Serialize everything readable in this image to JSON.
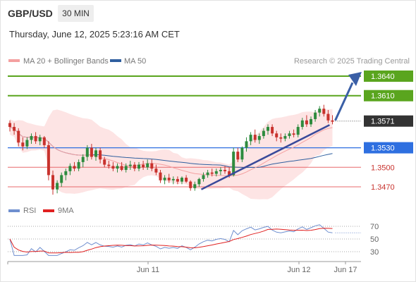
{
  "header": {
    "pair": "GBP/USD",
    "timeframe": "30 MIN",
    "datetime": "Thursday, June 12, 2025 5:23:16 AM CET"
  },
  "legend": {
    "ma20": {
      "label": "MA 20 + Bollinger Bands",
      "color": "#f4a0a0"
    },
    "ma50": {
      "label": "MA 50",
      "color": "#2f5f9f"
    },
    "credit": "Research © 2025 Trading Central"
  },
  "indicator_legend": {
    "rsi": {
      "label": "RSI",
      "color": "#6f8fcf"
    },
    "ma9": {
      "label": "9MA",
      "color": "#e02020"
    }
  },
  "colors": {
    "up": "#2e8b3e",
    "down": "#c8322d",
    "target": "#5aa51e",
    "pivot": "#2e6fe0",
    "support": "#e8696c",
    "current": "#333333",
    "trend": "#3a4a9a",
    "band": "#fde4e4"
  },
  "chart_data": [
    {
      "type": "candlestick",
      "title": "GBP/USD",
      "interval": "30 MIN",
      "x_ticks": [
        "Jun 11",
        "Jun 12",
        "Jun 17"
      ],
      "levels": [
        {
          "value": 1.364,
          "label": "1.3640",
          "kind": "target"
        },
        {
          "value": 1.361,
          "label": "1.3610",
          "kind": "target"
        },
        {
          "value": 1.3571,
          "label": "1.3571",
          "kind": "current"
        },
        {
          "value": 1.353,
          "label": "1.3530",
          "kind": "pivot"
        },
        {
          "value": 1.35,
          "label": "1.3500",
          "kind": "support"
        },
        {
          "value": 1.347,
          "label": "1.3470",
          "kind": "support"
        }
      ],
      "ylim": [
        1.3445,
        1.3665
      ],
      "candles": [
        {
          "o": 1.3568,
          "h": 1.3572,
          "l": 1.3555,
          "c": 1.3562
        },
        {
          "o": 1.3562,
          "h": 1.3568,
          "l": 1.355,
          "c": 1.3556
        },
        {
          "o": 1.3556,
          "h": 1.356,
          "l": 1.3532,
          "c": 1.3538
        },
        {
          "o": 1.3538,
          "h": 1.3546,
          "l": 1.3526,
          "c": 1.3532
        },
        {
          "o": 1.3532,
          "h": 1.3546,
          "l": 1.3528,
          "c": 1.3542
        },
        {
          "o": 1.3542,
          "h": 1.3552,
          "l": 1.3536,
          "c": 1.3548
        },
        {
          "o": 1.3548,
          "h": 1.3554,
          "l": 1.3536,
          "c": 1.354
        },
        {
          "o": 1.354,
          "h": 1.355,
          "l": 1.3534,
          "c": 1.3546
        },
        {
          "o": 1.3546,
          "h": 1.3548,
          "l": 1.353,
          "c": 1.3534
        },
        {
          "o": 1.3534,
          "h": 1.354,
          "l": 1.348,
          "c": 1.3488
        },
        {
          "o": 1.3488,
          "h": 1.3495,
          "l": 1.3458,
          "c": 1.3466
        },
        {
          "o": 1.3466,
          "h": 1.348,
          "l": 1.346,
          "c": 1.3476
        },
        {
          "o": 1.3476,
          "h": 1.3492,
          "l": 1.347,
          "c": 1.3488
        },
        {
          "o": 1.3488,
          "h": 1.3498,
          "l": 1.348,
          "c": 1.3494
        },
        {
          "o": 1.3494,
          "h": 1.3506,
          "l": 1.3488,
          "c": 1.3502
        },
        {
          "o": 1.3502,
          "h": 1.3508,
          "l": 1.3494,
          "c": 1.3498
        },
        {
          "o": 1.3498,
          "h": 1.3512,
          "l": 1.3494,
          "c": 1.3508
        },
        {
          "o": 1.3508,
          "h": 1.352,
          "l": 1.35,
          "c": 1.3516
        },
        {
          "o": 1.3516,
          "h": 1.3534,
          "l": 1.351,
          "c": 1.353
        },
        {
          "o": 1.353,
          "h": 1.3536,
          "l": 1.3512,
          "c": 1.3516
        },
        {
          "o": 1.3516,
          "h": 1.353,
          "l": 1.351,
          "c": 1.3526
        },
        {
          "o": 1.3526,
          "h": 1.353,
          "l": 1.3506,
          "c": 1.3512
        },
        {
          "o": 1.3512,
          "h": 1.3516,
          "l": 1.35,
          "c": 1.3504
        },
        {
          "o": 1.3504,
          "h": 1.351,
          "l": 1.3498,
          "c": 1.3502
        },
        {
          "o": 1.3502,
          "h": 1.3508,
          "l": 1.3494,
          "c": 1.3498
        },
        {
          "o": 1.3498,
          "h": 1.3506,
          "l": 1.3492,
          "c": 1.3502
        },
        {
          "o": 1.3502,
          "h": 1.3508,
          "l": 1.3494,
          "c": 1.3496
        },
        {
          "o": 1.3496,
          "h": 1.3506,
          "l": 1.3492,
          "c": 1.3502
        },
        {
          "o": 1.3502,
          "h": 1.351,
          "l": 1.3496,
          "c": 1.3504
        },
        {
          "o": 1.3504,
          "h": 1.3508,
          "l": 1.3494,
          "c": 1.3498
        },
        {
          "o": 1.3498,
          "h": 1.3508,
          "l": 1.3494,
          "c": 1.3504
        },
        {
          "o": 1.3504,
          "h": 1.351,
          "l": 1.3496,
          "c": 1.35
        },
        {
          "o": 1.35,
          "h": 1.3512,
          "l": 1.3496,
          "c": 1.3506
        },
        {
          "o": 1.3506,
          "h": 1.3512,
          "l": 1.3494,
          "c": 1.3498
        },
        {
          "o": 1.3498,
          "h": 1.3504,
          "l": 1.3488,
          "c": 1.3492
        },
        {
          "o": 1.3492,
          "h": 1.3496,
          "l": 1.3476,
          "c": 1.348
        },
        {
          "o": 1.348,
          "h": 1.3488,
          "l": 1.3474,
          "c": 1.3484
        },
        {
          "o": 1.3484,
          "h": 1.349,
          "l": 1.3476,
          "c": 1.348
        },
        {
          "o": 1.348,
          "h": 1.3486,
          "l": 1.3474,
          "c": 1.3482
        },
        {
          "o": 1.3482,
          "h": 1.3486,
          "l": 1.3474,
          "c": 1.3478
        },
        {
          "o": 1.3478,
          "h": 1.3486,
          "l": 1.3474,
          "c": 1.3484
        },
        {
          "o": 1.3484,
          "h": 1.3488,
          "l": 1.3476,
          "c": 1.3478
        },
        {
          "o": 1.3478,
          "h": 1.348,
          "l": 1.3464,
          "c": 1.3468
        },
        {
          "o": 1.3468,
          "h": 1.3478,
          "l": 1.3464,
          "c": 1.3474
        },
        {
          "o": 1.3474,
          "h": 1.3484,
          "l": 1.347,
          "c": 1.3482
        },
        {
          "o": 1.3482,
          "h": 1.3492,
          "l": 1.3478,
          "c": 1.3488
        },
        {
          "o": 1.3488,
          "h": 1.3496,
          "l": 1.3484,
          "c": 1.3492
        },
        {
          "o": 1.3492,
          "h": 1.3498,
          "l": 1.3486,
          "c": 1.349
        },
        {
          "o": 1.349,
          "h": 1.3498,
          "l": 1.3486,
          "c": 1.3494
        },
        {
          "o": 1.3494,
          "h": 1.35,
          "l": 1.3488,
          "c": 1.3496
        },
        {
          "o": 1.3496,
          "h": 1.3502,
          "l": 1.349,
          "c": 1.3494
        },
        {
          "o": 1.3494,
          "h": 1.35,
          "l": 1.3484,
          "c": 1.3488
        },
        {
          "o": 1.3488,
          "h": 1.353,
          "l": 1.3486,
          "c": 1.3524
        },
        {
          "o": 1.3524,
          "h": 1.353,
          "l": 1.3508,
          "c": 1.3512
        },
        {
          "o": 1.3512,
          "h": 1.3532,
          "l": 1.3508,
          "c": 1.353
        },
        {
          "o": 1.353,
          "h": 1.3546,
          "l": 1.3524,
          "c": 1.354
        },
        {
          "o": 1.354,
          "h": 1.3554,
          "l": 1.3534,
          "c": 1.355
        },
        {
          "o": 1.355,
          "h": 1.3558,
          "l": 1.3538,
          "c": 1.3542
        },
        {
          "o": 1.3542,
          "h": 1.3552,
          "l": 1.3536,
          "c": 1.3548
        },
        {
          "o": 1.3548,
          "h": 1.356,
          "l": 1.3544,
          "c": 1.3556
        },
        {
          "o": 1.3556,
          "h": 1.3566,
          "l": 1.355,
          "c": 1.3562
        },
        {
          "o": 1.3562,
          "h": 1.3566,
          "l": 1.3548,
          "c": 1.3552
        },
        {
          "o": 1.3552,
          "h": 1.3556,
          "l": 1.354,
          "c": 1.3546
        },
        {
          "o": 1.3546,
          "h": 1.3552,
          "l": 1.3538,
          "c": 1.3544
        },
        {
          "o": 1.3544,
          "h": 1.3552,
          "l": 1.354,
          "c": 1.3548
        },
        {
          "o": 1.3548,
          "h": 1.3556,
          "l": 1.3544,
          "c": 1.3552
        },
        {
          "o": 1.3552,
          "h": 1.3558,
          "l": 1.3546,
          "c": 1.355
        },
        {
          "o": 1.355,
          "h": 1.3566,
          "l": 1.3546,
          "c": 1.3562
        },
        {
          "o": 1.3562,
          "h": 1.3576,
          "l": 1.3558,
          "c": 1.3572
        },
        {
          "o": 1.3572,
          "h": 1.358,
          "l": 1.3562,
          "c": 1.3566
        },
        {
          "o": 1.3566,
          "h": 1.3578,
          "l": 1.3562,
          "c": 1.3574
        },
        {
          "o": 1.3574,
          "h": 1.3588,
          "l": 1.357,
          "c": 1.3584
        },
        {
          "o": 1.3584,
          "h": 1.3594,
          "l": 1.3578,
          "c": 1.359
        },
        {
          "o": 1.359,
          "h": 1.3596,
          "l": 1.3578,
          "c": 1.3582
        },
        {
          "o": 1.3582,
          "h": 1.3588,
          "l": 1.3568,
          "c": 1.3572
        },
        {
          "o": 1.3572,
          "h": 1.358,
          "l": 1.3566,
          "c": 1.357
        }
      ]
    },
    {
      "type": "line",
      "title": "",
      "series": [
        {
          "name": "RSI"
        },
        {
          "name": "9MA"
        }
      ],
      "y_ticks": [
        70,
        50,
        30
      ],
      "ylim": [
        20,
        80
      ]
    }
  ]
}
